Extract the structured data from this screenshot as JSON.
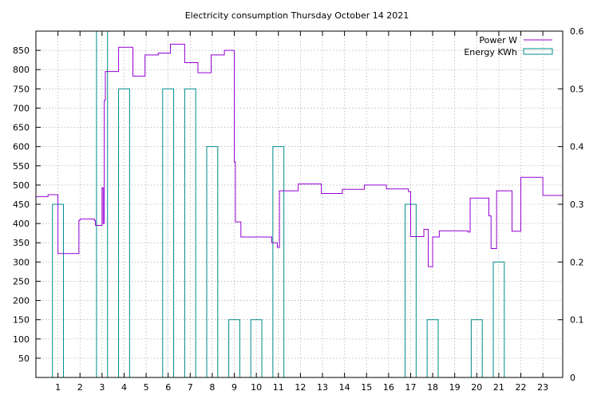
{
  "chart_data": {
    "type": "line",
    "title": "Electricity consumption Thursday October 14 2021",
    "xlabel": "",
    "ylabel": "",
    "xlim": [
      0,
      23.9
    ],
    "ylim": [
      0,
      900
    ],
    "y2lim": [
      0,
      0.6
    ],
    "grid": true,
    "legend_position": "top-right",
    "x_ticks": [
      1,
      2,
      3,
      4,
      5,
      6,
      7,
      8,
      9,
      10,
      11,
      12,
      13,
      14,
      15,
      16,
      17,
      18,
      19,
      20,
      21,
      22,
      23
    ],
    "y_ticks": [
      50,
      100,
      150,
      200,
      250,
      300,
      350,
      400,
      450,
      500,
      550,
      600,
      650,
      700,
      750,
      800,
      850
    ],
    "y2_ticks": [
      0,
      0.1,
      0.2,
      0.3,
      0.4,
      0.5,
      0.6
    ],
    "series": [
      {
        "name": "Power W",
        "axis": "y",
        "color": "#9400d3",
        "style": "step",
        "x": [
          0,
          0.55,
          1.0,
          1.95,
          2.0,
          2.65,
          2.7,
          3.0,
          3.05,
          3.1,
          3.15,
          3.2,
          3.75,
          4.4,
          4.95,
          5.55,
          6.1,
          6.75,
          7.35,
          7.95,
          8.55,
          9.0,
          9.05,
          9.3,
          10.7,
          10.95,
          11.05,
          11.1,
          11.9,
          12.95,
          13.9,
          14.9,
          15.9,
          16.9,
          17.0,
          17.6,
          17.8,
          18.0,
          18.3,
          19.6,
          19.7,
          20.55,
          20.65,
          20.9,
          21.6,
          22.0,
          23.0,
          23.9
        ],
        "values": [
          470,
          475,
          322,
          408,
          412,
          408,
          395,
          493,
          400,
          720,
          795,
          795,
          858,
          783,
          838,
          843,
          866,
          818,
          792,
          838,
          850,
          560,
          404,
          365,
          350,
          338,
          485,
          485,
          503,
          478,
          489,
          500,
          490,
          483,
          366,
          385,
          288,
          365,
          381,
          378,
          466,
          420,
          335,
          485,
          380,
          520,
          473,
          473
        ]
      },
      {
        "name": "Energy KWh",
        "axis": "y2",
        "color": "#008b8b",
        "style": "bars",
        "bar_width": 0.5,
        "x": [
          1,
          3,
          4,
          6,
          7,
          8,
          9,
          10,
          11,
          17,
          18,
          20,
          21
        ],
        "values": [
          0.3,
          0.6,
          0.5,
          0.5,
          0.5,
          0.4,
          0.1,
          0.1,
          0.4,
          0.3,
          0.1,
          0.1,
          0.2
        ]
      }
    ]
  }
}
